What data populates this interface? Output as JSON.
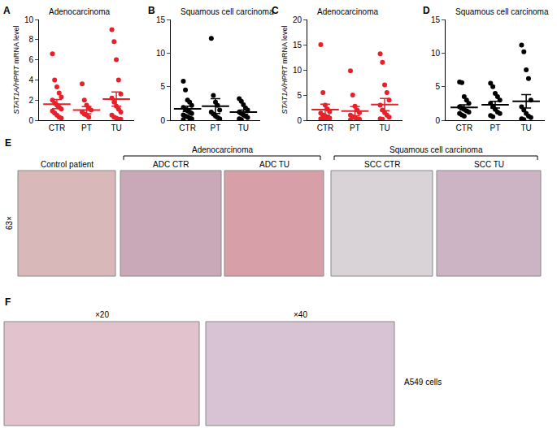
{
  "chart_data": [
    {
      "type": "scatter",
      "annotations": [
        "A"
      ],
      "title": "Adenocarcinoma",
      "y_label": "STAT1A/HPRT mRNA level",
      "categories": [
        "CTR",
        "PT",
        "TU"
      ],
      "color": "#e8202a",
      "marker": "circle",
      "grid": false,
      "ylim": [
        0,
        10
      ],
      "yticks": [
        0,
        2,
        4,
        6,
        8,
        10
      ],
      "values": [
        [
          6.6,
          4.0,
          3.3,
          2.7,
          2.3,
          2.0,
          1.7,
          1.5,
          1.3,
          1.1,
          0.9,
          0.7,
          0.5,
          0.3,
          0.2
        ],
        [
          3.6,
          2.0,
          1.5,
          1.2,
          1.0,
          0.8,
          0.6,
          0.5,
          0.3
        ],
        [
          9.0,
          7.8,
          6.0,
          4.0,
          2.6,
          2.2,
          1.8,
          1.4,
          1.1,
          0.8,
          0.5,
          0.3,
          0.2,
          0.1,
          0.1
        ]
      ],
      "mean": [
        1.6,
        1.0,
        2.1
      ],
      "error": [
        0.45,
        0.35,
        0.7
      ]
    },
    {
      "type": "scatter",
      "annotations": [
        "B"
      ],
      "title": "Squamous cell carcinoma",
      "categories": [
        "CTR",
        "PT",
        "TU"
      ],
      "color": "#000000",
      "marker": "circle",
      "grid": false,
      "ylim": [
        0,
        15
      ],
      "yticks": [
        0,
        5,
        10,
        15
      ],
      "values": [
        [
          5.8,
          4.5,
          3.0,
          2.7,
          2.2,
          1.9,
          1.6,
          1.4,
          1.2,
          1.0,
          0.8,
          0.6,
          0.5,
          0.3,
          0.2,
          0.1
        ],
        [
          12.2,
          3.7,
          2.7,
          2.2,
          1.5,
          1.2,
          0.9,
          0.6,
          0.4,
          0.2
        ],
        [
          3.2,
          2.8,
          2.3,
          1.8,
          1.5,
          1.2,
          1.0,
          0.8,
          0.6,
          0.4,
          0.2,
          0.1
        ]
      ],
      "mean": [
        1.7,
        2.1,
        1.2
      ],
      "error": [
        0.4,
        1.1,
        0.3
      ]
    },
    {
      "type": "scatter",
      "annotations": [
        "C"
      ],
      "title": "Adenocarcinoma",
      "y_label": "STAT1A/HPRT mRNA level",
      "categories": [
        "CTR",
        "PT",
        "TU"
      ],
      "color": "#e8202a",
      "marker": "circle",
      "grid": false,
      "ylim": [
        0,
        20
      ],
      "yticks": [
        0,
        5,
        10,
        15,
        20
      ],
      "values": [
        [
          15.0,
          5.5,
          3.0,
          2.2,
          1.7,
          1.4,
          1.0,
          0.8,
          0.6,
          0.4,
          0.3,
          0.2,
          0.1
        ],
        [
          9.8,
          5.0,
          2.8,
          2.0,
          1.5,
          1.0,
          0.7,
          0.5,
          0.3,
          0.2,
          0.1
        ],
        [
          13.2,
          11.5,
          7.0,
          5.5,
          4.0,
          3.0,
          2.0,
          1.5,
          1.0,
          0.6,
          0.3,
          0.2
        ]
      ],
      "mean": [
        2.1,
        1.8,
        3.1
      ],
      "error": [
        1.1,
        0.9,
        1.2
      ]
    },
    {
      "type": "scatter",
      "annotations": [
        "D"
      ],
      "title": "Squamous cell carcinoma",
      "categories": [
        "CTR",
        "PT",
        "TU"
      ],
      "color": "#000000",
      "marker": "circle",
      "grid": false,
      "ylim": [
        0,
        15
      ],
      "yticks": [
        0,
        5,
        10,
        15
      ],
      "values": [
        [
          5.7,
          5.6,
          3.5,
          3.0,
          2.5,
          2.0,
          1.8,
          1.6,
          1.4,
          1.2,
          1.0,
          0.8,
          0.6
        ],
        [
          5.5,
          5.0,
          4.0,
          3.5,
          3.0,
          2.5,
          2.0,
          1.6,
          1.2,
          1.0,
          0.7,
          0.5
        ],
        [
          11.2,
          10.2,
          7.5,
          6.2,
          3.0,
          2.0,
          1.5,
          1.0,
          0.6,
          0.4,
          0.2,
          0.1
        ]
      ],
      "mean": [
        1.9,
        2.3,
        2.8
      ],
      "error": [
        0.4,
        0.5,
        1.0
      ]
    }
  ],
  "panels": {
    "E": {
      "label": "E",
      "magnification": "63×",
      "images": [
        "Control patient",
        "ADC CTR",
        "ADC TU",
        "SCC CTR",
        "SCC TU"
      ],
      "groups": [
        {
          "text": "Adenocarcinoma",
          "images": [
            1,
            2
          ]
        },
        {
          "text": "Squamous cell carcinoma",
          "images": [
            3,
            4
          ]
        }
      ]
    },
    "F": {
      "label": "F",
      "images": [
        "×20",
        "×40"
      ],
      "caption": "A549 cells"
    }
  }
}
